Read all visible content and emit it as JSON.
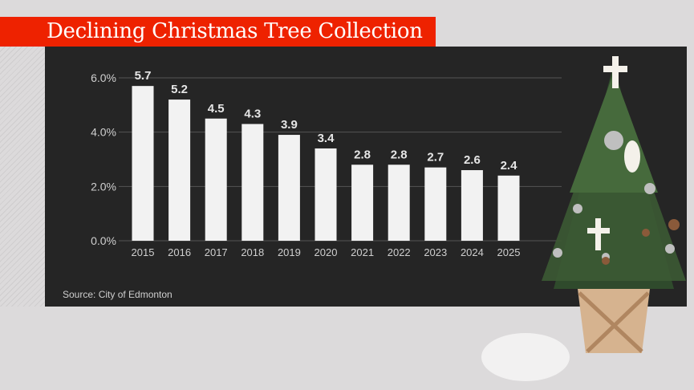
{
  "title": "Declining Christmas Tree Collection",
  "source": "Source: City of Edmonton",
  "colors": {
    "accent": "#ee2200",
    "panel": "#252525",
    "bar": "#f2f2f2"
  },
  "chart_data": {
    "type": "bar",
    "title": "Declining Christmas Tree Collection",
    "categories": [
      "2015",
      "2016",
      "2017",
      "2018",
      "2019",
      "2020",
      "2021",
      "2022",
      "2023",
      "2024",
      "2025"
    ],
    "values": [
      5.7,
      5.2,
      4.5,
      4.3,
      3.9,
      3.4,
      2.8,
      2.8,
      2.7,
      2.6,
      2.4
    ],
    "data_labels": [
      "5.7",
      "5.2",
      "4.5",
      "4.3",
      "3.9",
      "3.4",
      "2.8",
      "2.8",
      "2.7",
      "2.6",
      "2.4"
    ],
    "yticks": [
      0,
      2,
      4,
      6
    ],
    "ytick_labels": [
      "0.0%",
      "2.0%",
      "4.0%",
      "6.0%"
    ],
    "ylim": [
      0,
      6
    ],
    "xlabel": "",
    "ylabel": "",
    "grid": true
  }
}
